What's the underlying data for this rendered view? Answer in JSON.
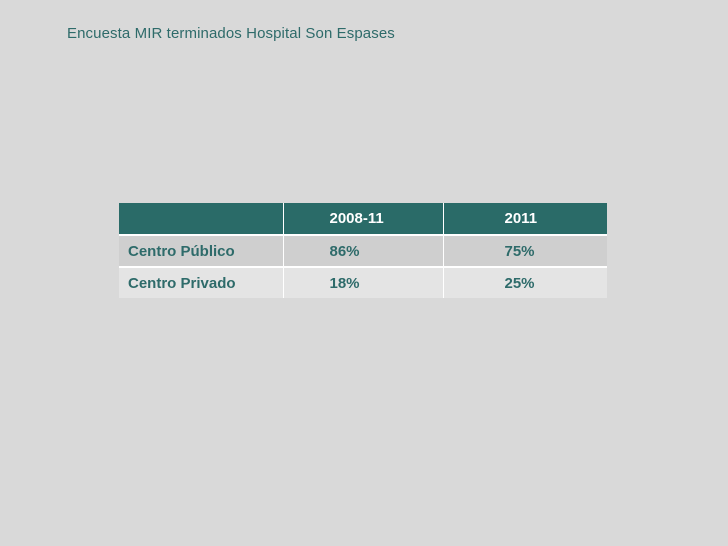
{
  "title": "Encuesta MIR terminados Hospital Son Espases",
  "table": {
    "headers": [
      "",
      "2008-11",
      "2011"
    ],
    "rows": [
      {
        "label": "Centro Público",
        "values": [
          "86%",
          "75%"
        ]
      },
      {
        "label": "Centro Privado",
        "values": [
          "18%",
          "25%"
        ]
      }
    ]
  },
  "colors": {
    "background": "#d9d9d9",
    "header_fill": "#2a6b68",
    "text_teal": "#2e6b6a",
    "row_dark": "#cfcfcf",
    "row_light": "#e4e4e4"
  }
}
